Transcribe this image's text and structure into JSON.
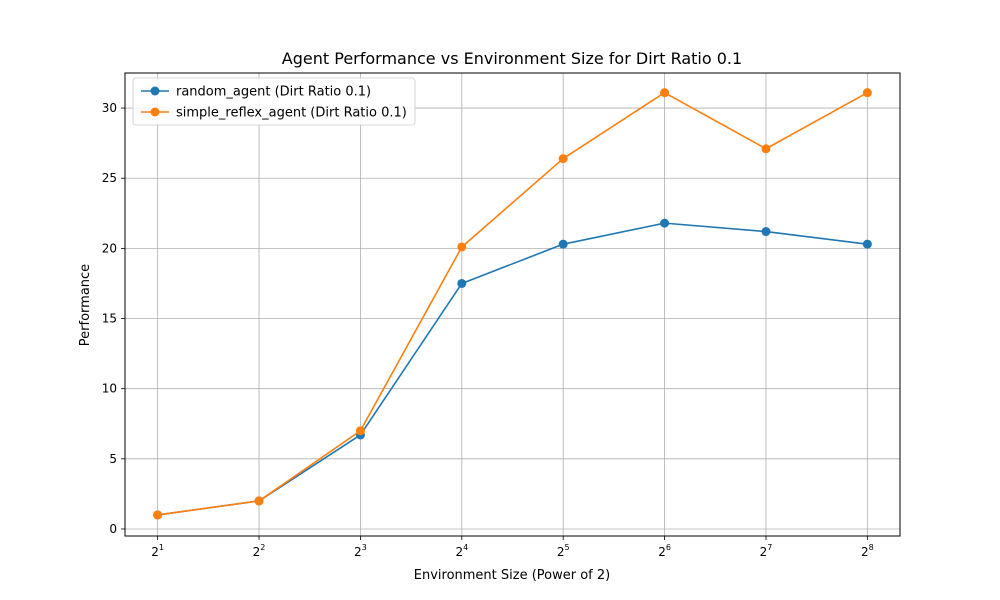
{
  "chart_data": {
    "type": "line",
    "title": "Agent Performance vs Environment Size for Dirt Ratio 0.1",
    "xlabel": "Environment Size (Power of 2)",
    "ylabel": "Performance",
    "x": [
      2,
      4,
      8,
      16,
      32,
      64,
      128,
      256
    ],
    "x_tick_labels": [
      {
        "base": "2",
        "exp": "1"
      },
      {
        "base": "2",
        "exp": "2"
      },
      {
        "base": "2",
        "exp": "3"
      },
      {
        "base": "2",
        "exp": "4"
      },
      {
        "base": "2",
        "exp": "5"
      },
      {
        "base": "2",
        "exp": "6"
      },
      {
        "base": "2",
        "exp": "7"
      },
      {
        "base": "2",
        "exp": "8"
      }
    ],
    "x_scale": "log2",
    "xlim": [
      1.6,
      320
    ],
    "ylim": [
      -0.5,
      32.5
    ],
    "y_ticks": [
      0,
      5,
      10,
      15,
      20,
      25,
      30
    ],
    "grid": true,
    "legend_position": "upper-left",
    "series": [
      {
        "name": "random_agent (Dirt Ratio 0.1)",
        "color": "#1f77b4",
        "marker": "circle",
        "values": [
          1.0,
          2.0,
          6.7,
          17.5,
          20.3,
          21.8,
          21.2,
          20.3
        ]
      },
      {
        "name": "simple_reflex_agent (Dirt Ratio 0.1)",
        "color": "#ff7f0e",
        "marker": "circle",
        "values": [
          1.0,
          2.0,
          7.0,
          20.1,
          26.4,
          31.1,
          27.1,
          31.1
        ]
      }
    ]
  }
}
